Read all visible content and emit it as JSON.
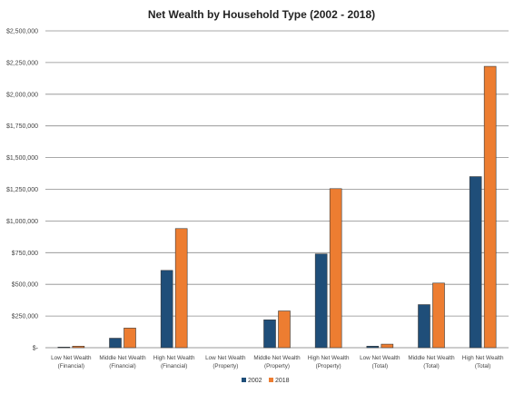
{
  "chart_data": {
    "type": "bar",
    "title": "Net Wealth by Household Type (2002 - 2018)",
    "xlabel": "",
    "ylabel": "",
    "ylim": [
      0,
      2500000
    ],
    "yticks": [
      0,
      250000,
      500000,
      750000,
      1000000,
      1250000,
      1500000,
      1750000,
      2000000,
      2250000,
      2500000
    ],
    "ytick_labels": [
      "$-",
      "$250,000",
      "$500,000",
      "$750,000",
      "$1,000,000",
      "$1,250,000",
      "$1,500,000",
      "$1,750,000",
      "$2,000,000",
      "$2,250,000",
      "$2,500,000"
    ],
    "grid": true,
    "legend_position": "bottom",
    "categories": [
      [
        "Low Net Wealth",
        "(Financial)"
      ],
      [
        "Middle Net Wealth",
        "(Financial)"
      ],
      [
        "High Net Wealth",
        "(Financial)"
      ],
      [
        "Low Net Wealth",
        "(Property)"
      ],
      [
        "Middle Net Wealth",
        "(Property)"
      ],
      [
        "High Net Wealth",
        "(Property)"
      ],
      [
        "Low Net Wealth",
        "(Total)"
      ],
      [
        "Middle Net Wealth",
        "(Total)"
      ],
      [
        "High Net Wealth",
        "(Total)"
      ]
    ],
    "series": [
      {
        "name": "2002",
        "color": "#1f4e79",
        "values": [
          5000,
          75000,
          610000,
          0,
          220000,
          740000,
          12000,
          340000,
          1350000
        ]
      },
      {
        "name": "2018",
        "color": "#ed7d31",
        "values": [
          12000,
          155000,
          940000,
          0,
          290000,
          1255000,
          28000,
          510000,
          2220000
        ]
      }
    ]
  }
}
